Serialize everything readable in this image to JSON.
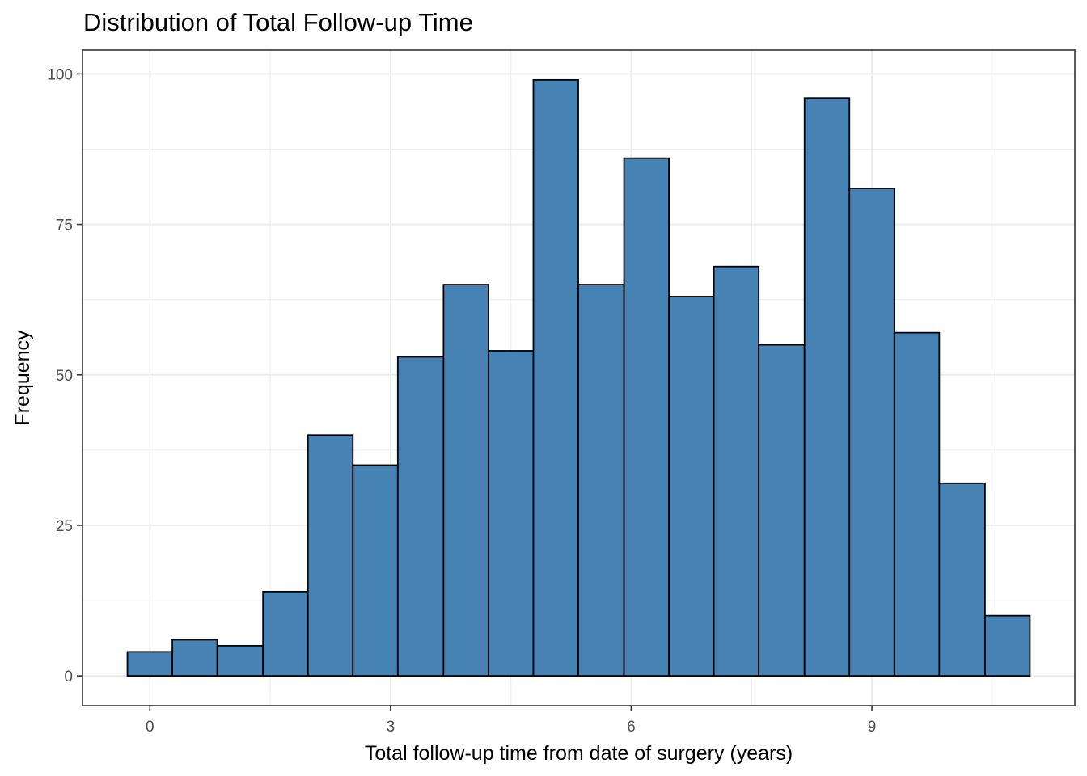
{
  "chart_data": {
    "type": "bar",
    "title": "Distribution of Total Follow-up Time",
    "xlabel": "Total follow-up time from date of surgery (years)",
    "ylabel": "Frequency",
    "bins": [
      {
        "start": -0.28,
        "end": 0.28,
        "count": 4
      },
      {
        "start": 0.28,
        "end": 0.84,
        "count": 6
      },
      {
        "start": 0.84,
        "end": 1.41,
        "count": 5
      },
      {
        "start": 1.41,
        "end": 1.97,
        "count": 14
      },
      {
        "start": 1.97,
        "end": 2.53,
        "count": 40
      },
      {
        "start": 2.53,
        "end": 3.09,
        "count": 35
      },
      {
        "start": 3.09,
        "end": 3.66,
        "count": 53
      },
      {
        "start": 3.66,
        "end": 4.22,
        "count": 65
      },
      {
        "start": 4.22,
        "end": 4.78,
        "count": 54
      },
      {
        "start": 4.78,
        "end": 5.34,
        "count": 99
      },
      {
        "start": 5.34,
        "end": 5.91,
        "count": 65
      },
      {
        "start": 5.91,
        "end": 6.47,
        "count": 86
      },
      {
        "start": 6.47,
        "end": 7.03,
        "count": 63
      },
      {
        "start": 7.03,
        "end": 7.59,
        "count": 68
      },
      {
        "start": 7.59,
        "end": 8.16,
        "count": 55
      },
      {
        "start": 8.16,
        "end": 8.72,
        "count": 96
      },
      {
        "start": 8.72,
        "end": 9.28,
        "count": 81
      },
      {
        "start": 9.28,
        "end": 9.84,
        "count": 57
      },
      {
        "start": 9.84,
        "end": 10.41,
        "count": 32
      },
      {
        "start": 10.41,
        "end": 10.97,
        "count": 10
      }
    ],
    "xticks": [
      0,
      3,
      6,
      9
    ],
    "xtick_labels": [
      "0",
      "3",
      "6",
      "9"
    ],
    "yticks": [
      0,
      25,
      50,
      75,
      100
    ],
    "ytick_labels": [
      "0",
      "25",
      "50",
      "75",
      "100"
    ],
    "xlim": [
      -0.84,
      11.53
    ],
    "ylim": [
      -4.95,
      103.95
    ],
    "grid": true,
    "bar_fill": "#4682B4",
    "bar_stroke": "#000000",
    "grid_color": "#ebebeb",
    "panel_border_color": "#333333"
  }
}
